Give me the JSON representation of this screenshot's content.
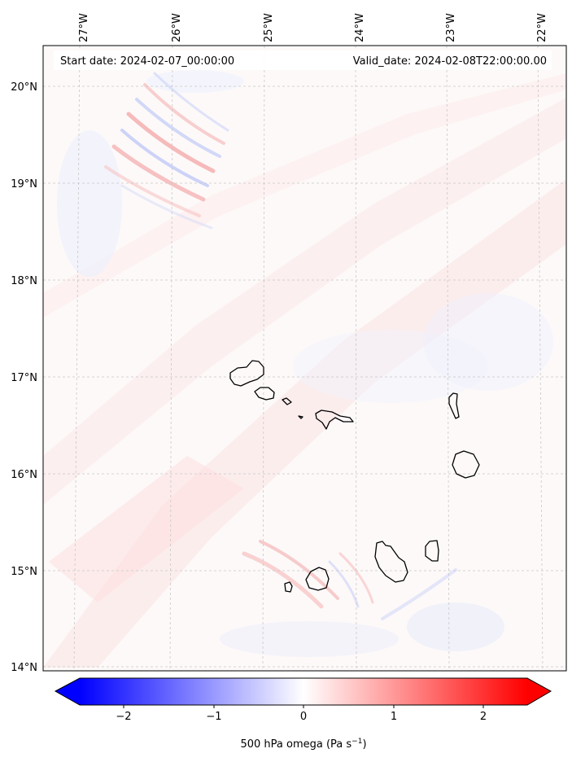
{
  "map": {
    "start_date": "Start date: 2024-02-07_00:00:00",
    "valid_date": "Valid_date: 2024-02-08T22:00:00.00",
    "lon_ticks": [
      "27°W",
      "26°W",
      "25°W",
      "24°W",
      "23°W",
      "22°W"
    ],
    "lat_ticks": [
      "20°N",
      "19°N",
      "18°N",
      "17°N",
      "16°N",
      "15°N",
      "14°N"
    ],
    "gridlines": true,
    "field": "500 hPa omega"
  },
  "colorbar": {
    "label_main": "500 hPa omega (Pa s",
    "label_sup": "−1",
    "label_end": ")",
    "ticks": [
      "−2",
      "−1",
      "0",
      "1",
      "2"
    ],
    "range": [
      -2.5,
      2.5
    ],
    "extend": "both",
    "colormap": "bwr",
    "colors": {
      "negative": "#0000ff",
      "zero": "#ffffff",
      "positive": "#ff0000"
    }
  },
  "colors": {
    "coastline": "#000000",
    "grid": "#c8c8c8"
  }
}
